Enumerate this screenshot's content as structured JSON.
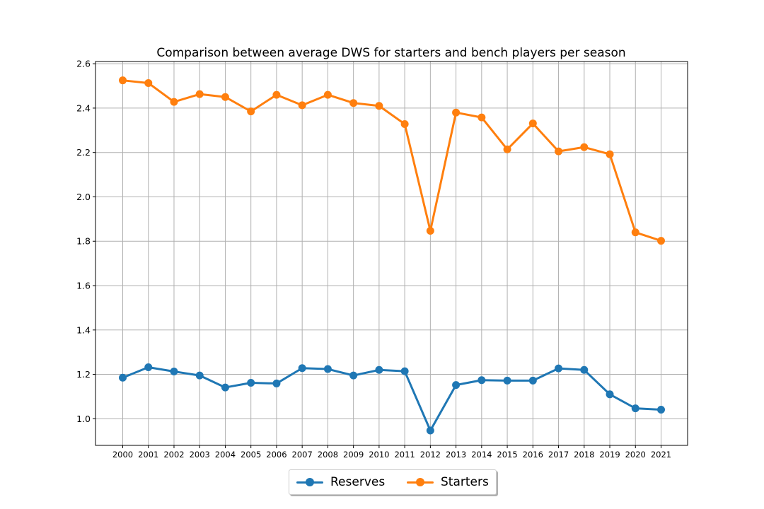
{
  "chart_data": {
    "type": "line",
    "title": "Comparison between average DWS for starters and bench players per season",
    "xlabel": "",
    "ylabel": "",
    "x": [
      "2000",
      "2001",
      "2002",
      "2003",
      "2004",
      "2005",
      "2006",
      "2007",
      "2008",
      "2009",
      "2010",
      "2011",
      "2012",
      "2013",
      "2014",
      "2015",
      "2016",
      "2017",
      "2018",
      "2019",
      "2020",
      "2021"
    ],
    "ylim": [
      0.88,
      2.61
    ],
    "yticks": [
      "1.0",
      "1.2",
      "1.4",
      "1.6",
      "1.8",
      "2.0",
      "2.2",
      "2.4",
      "2.6"
    ],
    "grid": true,
    "legend_position": "bottom-center",
    "series": [
      {
        "name": "Reserves",
        "color": "#1f77b4",
        "values": [
          1.185,
          1.232,
          1.213,
          1.195,
          1.141,
          1.162,
          1.159,
          1.228,
          1.224,
          1.195,
          1.22,
          1.214,
          0.947,
          1.152,
          1.174,
          1.172,
          1.172,
          1.227,
          1.22,
          1.11,
          1.047,
          1.041
        ]
      },
      {
        "name": "Starters",
        "color": "#ff7f0e",
        "values": [
          2.525,
          2.513,
          2.428,
          2.463,
          2.45,
          2.385,
          2.46,
          2.413,
          2.46,
          2.423,
          2.41,
          2.328,
          1.847,
          2.38,
          2.358,
          2.214,
          2.331,
          2.205,
          2.224,
          2.192,
          1.84,
          1.802
        ]
      }
    ]
  }
}
